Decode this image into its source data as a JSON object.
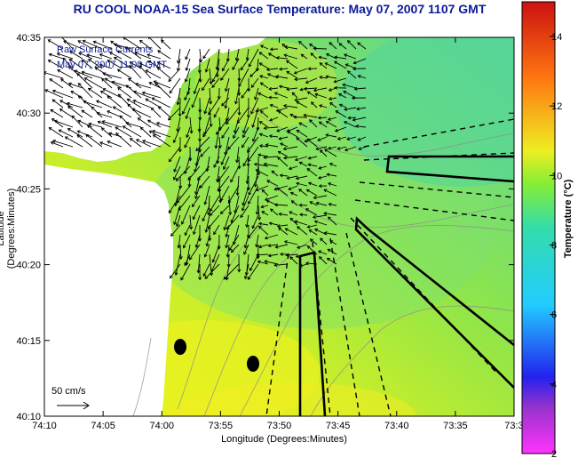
{
  "title": "RU COOL  NOAA-15  Sea Surface Temperature:  May 07, 2007 1107 GMT",
  "legend": {
    "line1": "Raw Surface Currents",
    "line2": "May 07, 2007 11:00 GMT"
  },
  "scale_label": "50 cm/s",
  "axes": {
    "xlabel": "Longitude (Degrees:Minutes)",
    "ylabel": "Latitude (Degrees:Minutes)",
    "xticks": [
      "74:10",
      "74:05",
      "74:00",
      "73:55",
      "73:50",
      "73:45",
      "73:40",
      "73:35",
      "73:3"
    ],
    "yticks": [
      "40:35",
      "40:30",
      "40:25",
      "40:20",
      "40:15",
      "40:10"
    ]
  },
  "colorbar": {
    "label": "Temperature (°C)",
    "ticks": [
      "14",
      "12",
      "10",
      "8",
      "6",
      "4",
      "2"
    ]
  },
  "colors": {
    "title": "#0a1a9a",
    "land": "#ffffff",
    "sst_warm": "#e8f020",
    "sst_mid": "#9ae83a",
    "sst_cool": "#55d59a"
  }
}
